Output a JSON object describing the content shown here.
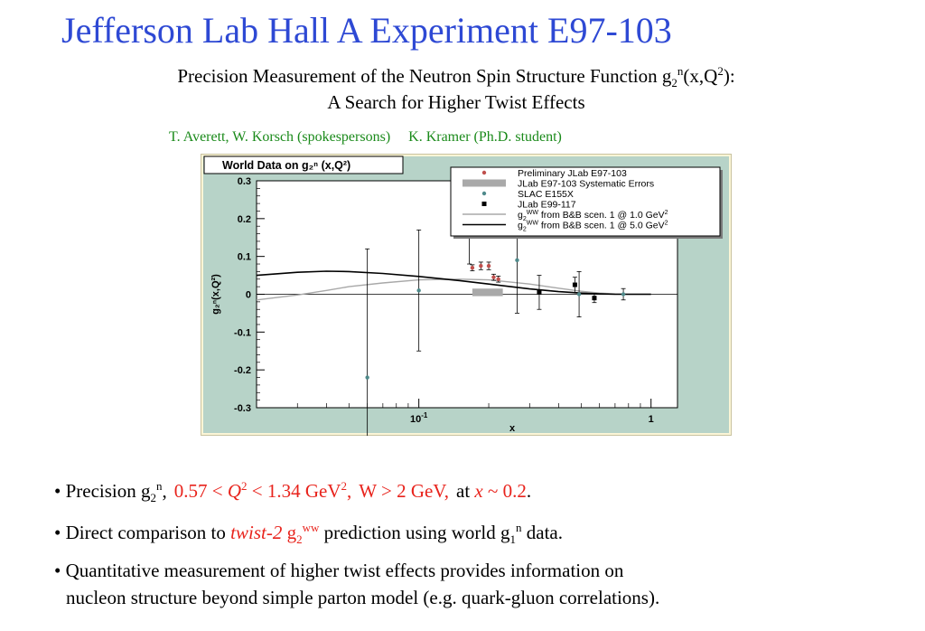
{
  "slide": {
    "title": "Jefferson Lab Hall A Experiment E97-103",
    "subtitle": {
      "line1_pre": "Precision Measurement of the Neutron Spin Structure Function g",
      "line1_sub": "2",
      "line1_sup": "n",
      "line1_mid": "(x,Q",
      "line1_sup2": "2",
      "line1_post": "):",
      "line2": "A Search for Higher Twist Effects"
    },
    "authors": {
      "spokespersons": "T. Averett, W. Korsch (spokespersons)",
      "student": "K. Kramer (Ph.D. student)"
    },
    "colors": {
      "title": "#2e49d4",
      "authors": "#1a8a1a",
      "highlight": "#e8231c",
      "plot_bg": "#b7d3c8",
      "frame_bg": "#fbf5d6"
    },
    "bullets": {
      "b1": {
        "prefix": "• Precision g",
        "sub": "2",
        "sup": "n",
        "comma": ",",
        "range_a": "0.57 <",
        "range_q": "Q",
        "range_q_sup": "2",
        "range_b": "< 1.34 GeV",
        "range_sup": "2",
        "range_c": ",",
        "w_cut": "W > 2 GeV,",
        "at": "at",
        "x_var": "x",
        "x_val": "~ 0.2",
        "end": "."
      },
      "b2": {
        "prefix": "• Direct comparison to",
        "twist": "twist-2",
        "g2": "g",
        "g2_sub": "2",
        "g2_sup": "ww",
        "mid": "prediction using world g",
        "g1_sub": "1",
        "g1_sup": "n",
        "end": "data."
      },
      "b3": {
        "line1": "• Quantitative measurement of higher twist effects provides information on",
        "line2": "nucleon structure beyond simple parton model (e.g. quark-gluon correlations)."
      }
    }
  },
  "chart_data": {
    "type": "scatter",
    "title": "World Data on g₂ⁿ (x,Q²)",
    "xlabel": "x",
    "ylabel": "g₂ⁿ(x,Q²)",
    "x_scale": "log",
    "xlim": [
      0.02,
      1.3
    ],
    "ylim": [
      -0.3,
      0.3
    ],
    "yticks": [
      0.3,
      0.2,
      0.1,
      0,
      -0.1,
      -0.2,
      -0.3
    ],
    "ytick_labels": [
      "0.3",
      "0.2",
      "0.1",
      "0",
      "-0.1",
      "-0.2",
      "-0.3"
    ],
    "xtick_labels": [
      {
        "x": 0.1,
        "label": "10",
        "sup": "-1"
      },
      {
        "x": 1,
        "label": "1",
        "sup": ""
      }
    ],
    "legend_position": "top-right",
    "legend": [
      {
        "label": "Preliminary JLab E97-103",
        "symbol": "circle",
        "color": "#c0504d"
      },
      {
        "label": "JLab E97-103 Systematic Errors",
        "symbol": "band",
        "color": "#a9a9a9"
      },
      {
        "label": "SLAC E155X",
        "symbol": "circle",
        "color": "#4f8a8b"
      },
      {
        "label": "JLab E99-117",
        "symbol": "square",
        "color": "#000000"
      },
      {
        "label": "g",
        "sub": "2",
        "sup": "WW",
        "post": " from B&B scen. 1 @ 1.0 GeV",
        "post_sup": "2",
        "symbol": "line",
        "color": "#a8a8a8"
      },
      {
        "label": "g",
        "sub": "2",
        "sup": "WW",
        "post": " from B&B scen. 1 @ 5.0 GeV",
        "post_sup": "2",
        "symbol": "line",
        "color": "#000000"
      }
    ],
    "series": [
      {
        "name": "Preliminary JLab E97-103",
        "color": "#c0504d",
        "marker": "circle",
        "points": [
          {
            "x": 0.17,
            "y": 0.07,
            "err": 0.008
          },
          {
            "x": 0.185,
            "y": 0.075,
            "err": 0.01
          },
          {
            "x": 0.2,
            "y": 0.075,
            "err": 0.01
          },
          {
            "x": 0.21,
            "y": 0.045,
            "err": 0.008
          },
          {
            "x": 0.22,
            "y": 0.04,
            "err": 0.008
          }
        ]
      },
      {
        "name": "SLAC E155X",
        "color": "#4f8a8b",
        "marker": "circle",
        "points": [
          {
            "x": 0.06,
            "y": -0.22,
            "err": 0.34
          },
          {
            "x": 0.1,
            "y": 0.01,
            "err": 0.16
          },
          {
            "x": 0.165,
            "y": 0.17,
            "err": 0.09
          },
          {
            "x": 0.265,
            "y": 0.09,
            "err": 0.14
          },
          {
            "x": 0.49,
            "y": 0.0,
            "err": 0.06
          },
          {
            "x": 0.76,
            "y": 0.0,
            "err": 0.015
          }
        ]
      },
      {
        "name": "JLab E99-117",
        "color": "#000000",
        "marker": "square",
        "points": [
          {
            "x": 0.33,
            "y": 0.005,
            "err": 0.045
          },
          {
            "x": 0.47,
            "y": 0.025,
            "err": 0.02
          },
          {
            "x": 0.57,
            "y": -0.01,
            "err": 0.012
          }
        ]
      },
      {
        "name": "Systematic band",
        "type": "band",
        "x_range": [
          0.17,
          0.23
        ],
        "y_range": [
          -0.005,
          0.015
        ],
        "color": "#a9a9a9"
      },
      {
        "name": "g2WW 1.0 GeV2",
        "type": "line",
        "color": "#a8a8a8",
        "x": [
          0.02,
          0.03,
          0.04,
          0.05,
          0.07,
          0.1,
          0.15,
          0.2,
          0.3,
          0.4,
          0.5,
          0.6,
          0.7,
          0.8,
          1.0
        ],
        "y": [
          -0.015,
          -0.002,
          0.01,
          0.02,
          0.03,
          0.038,
          0.04,
          0.038,
          0.027,
          0.016,
          0.008,
          0.003,
          0.001,
          0.0,
          0.0
        ]
      },
      {
        "name": "g2WW 5.0 GeV2",
        "type": "line",
        "color": "#000000",
        "x": [
          0.02,
          0.03,
          0.04,
          0.05,
          0.07,
          0.1,
          0.15,
          0.2,
          0.3,
          0.4,
          0.5,
          0.6,
          0.7,
          0.8,
          1.0
        ],
        "y": [
          0.05,
          0.058,
          0.061,
          0.06,
          0.055,
          0.047,
          0.036,
          0.027,
          0.014,
          0.007,
          0.003,
          0.001,
          0.0,
          0.0,
          0.0
        ]
      }
    ]
  }
}
